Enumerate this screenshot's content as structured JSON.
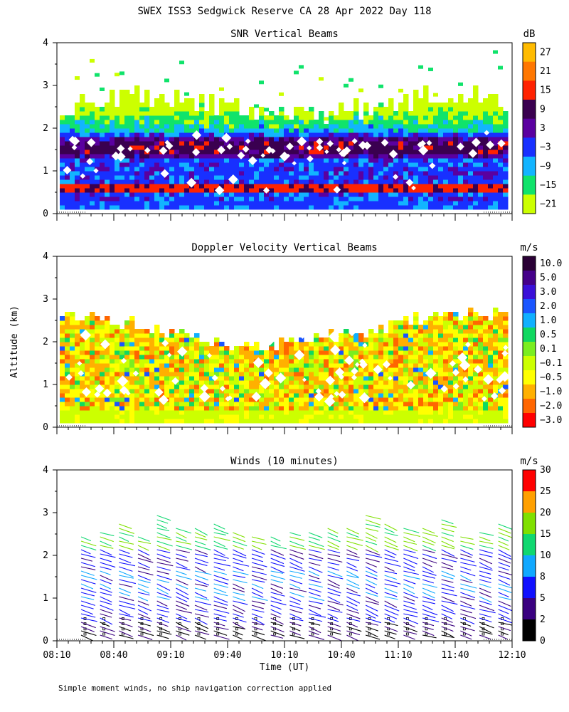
{
  "figure": {
    "title": "SWEX ISS3 Sedgwick Reserve CA  28 Apr 2022 Day 118",
    "y_axis_label": "Altitude (km)",
    "x_axis_label": "Time (UT)",
    "footer": "Simple moment winds, no ship navigation correction applied"
  },
  "chart_data": [
    {
      "type": "heatmap",
      "title": "SNR Vertical Beams",
      "colorbar": {
        "unit": "dB",
        "labels": [
          "27",
          "21",
          "15",
          "9",
          "3",
          "−3",
          "−9",
          "−15",
          "−21"
        ],
        "colors": [
          "#ffbb00",
          "#ff7700",
          "#ff2200",
          "#3a0050",
          "#5a00a0",
          "#1830ff",
          "#12b4ff",
          "#10e36b",
          "#ccff00"
        ]
      },
      "y_ticks": [
        "0",
        "1",
        "2",
        "3",
        "4"
      ],
      "ylim": [
        0,
        4
      ],
      "x_ticks": [],
      "data_top_km": 3.3
    },
    {
      "type": "heatmap",
      "title": "Doppler Velocity Vertical Beams",
      "colorbar": {
        "unit": "m/s",
        "labels": [
          "10.0",
          "5.0",
          "3.0",
          "2.0",
          "1.0",
          "0.5",
          "0.1",
          "−0.1",
          "−0.5",
          "−1.0",
          "−2.0",
          "−3.0"
        ],
        "colors": [
          "#2a0035",
          "#45008a",
          "#3a10d8",
          "#1a55ff",
          "#10b0ff",
          "#10d860",
          "#7aee20",
          "#ccff00",
          "#ffff00",
          "#ffb000",
          "#ff6600",
          "#ff0000"
        ]
      },
      "y_ticks": [
        "0",
        "1",
        "2",
        "3",
        "4"
      ],
      "ylim": [
        0,
        4
      ],
      "x_ticks": [],
      "data_top_km": 2.6
    },
    {
      "type": "scatter",
      "title": "Winds (10 minutes)",
      "colorbar": {
        "unit": "m/s",
        "labels": [
          "30",
          "25",
          "20",
          "15",
          "10",
          "8",
          "5",
          "2",
          "0"
        ],
        "colors": [
          "#ff0000",
          "#ffa000",
          "#80e000",
          "#10d870",
          "#10a8ff",
          "#1010ff",
          "#3a0080",
          "#000000"
        ]
      },
      "y_ticks": [
        "0",
        "1",
        "2",
        "3",
        "4"
      ],
      "ylim": [
        0,
        4
      ],
      "x_ticks": [
        "08:10",
        "08:40",
        "09:10",
        "09:40",
        "10:10",
        "10:40",
        "11:10",
        "11:40",
        "12:10"
      ],
      "x": [
        "08:25",
        "08:35",
        "08:45",
        "08:55",
        "09:05",
        "09:15",
        "09:25",
        "09:35",
        "09:45",
        "09:55",
        "10:05",
        "10:15",
        "10:25",
        "10:35",
        "10:45",
        "10:55",
        "11:05",
        "11:15",
        "11:25",
        "11:35",
        "11:45",
        "11:55",
        "12:05"
      ]
    }
  ]
}
